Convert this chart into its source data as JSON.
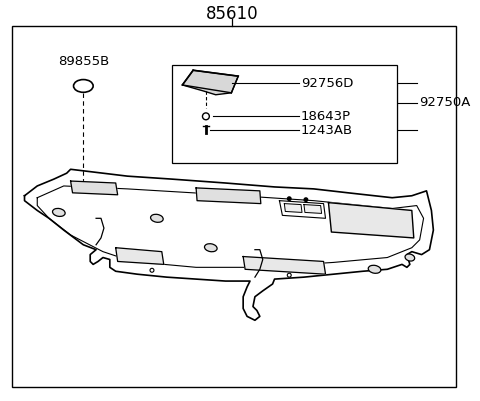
{
  "title": "85610",
  "bg_color": "#ffffff",
  "border_color": "#000000",
  "line_color": "#000000",
  "text_color": "#000000",
  "labels": {
    "main": "85610",
    "part_a": "89855B",
    "part_b": "92750A",
    "sub1": "92756D",
    "sub2": "18643P",
    "sub3": "1243AB"
  },
  "font_size_main": 11,
  "font_size_label": 9.5
}
